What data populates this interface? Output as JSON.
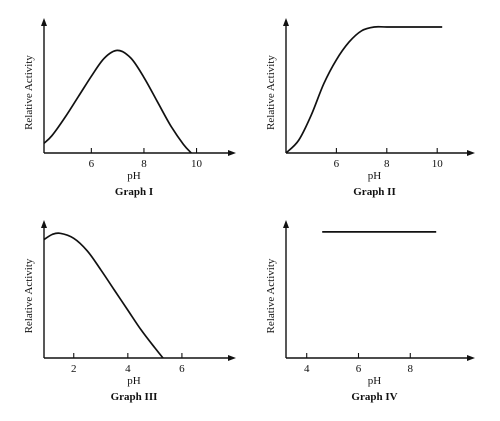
{
  "chart_data": [
    {
      "type": "line",
      "title": "Graph I",
      "xlabel": "pH",
      "ylabel": "Relative Activity",
      "xlim": [
        4.2,
        11.5
      ],
      "ylim": [
        0,
        1
      ],
      "x_ticks": [
        6,
        8,
        10
      ],
      "grid": false,
      "series": [
        {
          "x": [
            4.2,
            4.5,
            5.0,
            5.5,
            6.0,
            6.5,
            7.0,
            7.5,
            8.0,
            8.5,
            9.0,
            9.5,
            9.8
          ],
          "values": [
            0.09,
            0.16,
            0.33,
            0.52,
            0.71,
            0.88,
            0.95,
            0.88,
            0.7,
            0.48,
            0.26,
            0.08,
            0.0
          ]
        }
      ]
    },
    {
      "type": "line",
      "title": "Graph II",
      "xlabel": "pH",
      "ylabel": "Relative Activity",
      "xlim": [
        4.0,
        11.5
      ],
      "ylim": [
        0,
        1
      ],
      "x_ticks": [
        6,
        8,
        10
      ],
      "grid": false,
      "series": [
        {
          "x": [
            4.0,
            4.5,
            5.0,
            5.5,
            6.0,
            6.5,
            7.0,
            7.5,
            8.0,
            9.0,
            10.2
          ],
          "values": [
            0.0,
            0.1,
            0.3,
            0.55,
            0.74,
            0.88,
            0.97,
            1.0,
            1.0,
            1.0,
            1.0
          ]
        }
      ]
    },
    {
      "type": "line",
      "title": "Graph III",
      "xlabel": "pH",
      "ylabel": "Relative Activity",
      "xlim": [
        0.9,
        8.0
      ],
      "ylim": [
        0,
        1
      ],
      "x_ticks": [
        2,
        4,
        6
      ],
      "grid": false,
      "series": [
        {
          "x": [
            0.9,
            1.2,
            1.5,
            2.0,
            2.5,
            3.0,
            3.5,
            4.0,
            4.5,
            5.0,
            5.3
          ],
          "values": [
            0.94,
            0.98,
            0.99,
            0.95,
            0.85,
            0.7,
            0.54,
            0.38,
            0.22,
            0.08,
            0.0
          ]
        }
      ]
    },
    {
      "type": "line",
      "title": "Graph IV",
      "xlabel": "pH",
      "ylabel": "Relative Activity",
      "xlim": [
        3.2,
        10.5
      ],
      "ylim": [
        0,
        1
      ],
      "x_ticks": [
        4,
        6,
        8
      ],
      "grid": false,
      "series": [
        {
          "x": [
            4.6,
            9.0
          ],
          "values": [
            0.97,
            0.97
          ]
        }
      ]
    }
  ]
}
